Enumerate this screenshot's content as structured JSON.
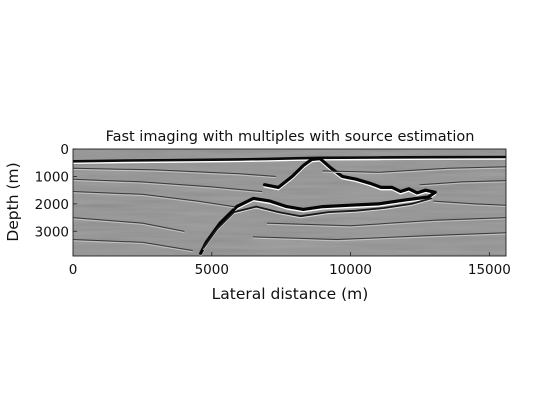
{
  "chart_data": {
    "type": "heatmap",
    "title": "Fast imaging with multiples with source estimation",
    "xlabel": "Lateral distance (m)",
    "ylabel": "Depth (m)",
    "xlim": [
      0,
      15600
    ],
    "ylim": [
      0,
      3900
    ],
    "y_reversed": true,
    "colormap": "gray",
    "xticks": [
      0,
      5000,
      10000,
      15000
    ],
    "yticks": [
      0,
      1000,
      2000,
      3000
    ],
    "xtick_labels": [
      "0",
      "5000",
      "10000",
      "15000"
    ],
    "ytick_labels": [
      "0",
      "1000",
      "2000",
      "3000"
    ],
    "grid": false,
    "reflectors": [
      {
        "kind": "water-bottom",
        "points": [
          [
            0,
            450
          ],
          [
            2000,
            420
          ],
          [
            4000,
            400
          ],
          [
            6000,
            380
          ],
          [
            7000,
            360
          ],
          [
            8000,
            340
          ],
          [
            9000,
            320
          ],
          [
            11000,
            310
          ],
          [
            13000,
            300
          ],
          [
            15600,
            290
          ]
        ]
      },
      {
        "kind": "salt-top",
        "points": [
          [
            6900,
            1300
          ],
          [
            7400,
            1400
          ],
          [
            7900,
            1000
          ],
          [
            8300,
            600
          ],
          [
            8600,
            380
          ],
          [
            8900,
            350
          ],
          [
            9300,
            700
          ],
          [
            9700,
            1000
          ],
          [
            10200,
            1100
          ],
          [
            10700,
            1250
          ],
          [
            11100,
            1400
          ],
          [
            11500,
            1400
          ],
          [
            11800,
            1550
          ],
          [
            12100,
            1450
          ],
          [
            12400,
            1600
          ],
          [
            12700,
            1500
          ],
          [
            13050,
            1580
          ],
          [
            12800,
            1750
          ],
          [
            12000,
            1850
          ],
          [
            11000,
            2000
          ],
          [
            10000,
            2050
          ],
          [
            9000,
            2100
          ],
          [
            8300,
            2200
          ],
          [
            7700,
            2100
          ],
          [
            7100,
            1900
          ],
          [
            6500,
            1800
          ],
          [
            5900,
            2100
          ],
          [
            5300,
            2700
          ],
          [
            4800,
            3400
          ],
          [
            4600,
            3800
          ]
        ]
      },
      {
        "kind": "salt-base",
        "points": [
          [
            4700,
            3600
          ],
          [
            5200,
            2900
          ],
          [
            5800,
            2300
          ],
          [
            6600,
            2100
          ],
          [
            7400,
            2300
          ],
          [
            8200,
            2450
          ],
          [
            9200,
            2300
          ],
          [
            10200,
            2250
          ],
          [
            11200,
            2150
          ],
          [
            12200,
            2000
          ],
          [
            12900,
            1800
          ]
        ]
      },
      {
        "kind": "sediment",
        "points": [
          [
            0,
            700
          ],
          [
            3000,
            760
          ],
          [
            6000,
            900
          ],
          [
            7300,
            1000
          ]
        ]
      },
      {
        "kind": "sediment",
        "points": [
          [
            0,
            1100
          ],
          [
            2500,
            1200
          ],
          [
            5000,
            1380
          ],
          [
            6800,
            1550
          ]
        ]
      },
      {
        "kind": "sediment",
        "points": [
          [
            0,
            1550
          ],
          [
            2500,
            1650
          ],
          [
            4500,
            1900
          ],
          [
            5800,
            2100
          ]
        ]
      },
      {
        "kind": "sediment",
        "points": [
          [
            9000,
            800
          ],
          [
            11000,
            850
          ],
          [
            13500,
            700
          ],
          [
            15600,
            650
          ]
        ]
      },
      {
        "kind": "sediment",
        "points": [
          [
            12500,
            1300
          ],
          [
            14000,
            1200
          ],
          [
            15600,
            1150
          ]
        ]
      },
      {
        "kind": "sediment",
        "points": [
          [
            13000,
            1900
          ],
          [
            14500,
            2000
          ],
          [
            15600,
            2050
          ]
        ]
      },
      {
        "kind": "sediment",
        "points": [
          [
            7000,
            2700
          ],
          [
            10000,
            2800
          ],
          [
            13000,
            2600
          ],
          [
            15600,
            2500
          ]
        ]
      },
      {
        "kind": "sediment",
        "points": [
          [
            6500,
            3200
          ],
          [
            9500,
            3300
          ],
          [
            13000,
            3150
          ],
          [
            15600,
            3050
          ]
        ]
      },
      {
        "kind": "sediment",
        "points": [
          [
            0,
            2500
          ],
          [
            2500,
            2700
          ],
          [
            4000,
            3000
          ]
        ]
      },
      {
        "kind": "sediment",
        "points": [
          [
            0,
            3300
          ],
          [
            2500,
            3400
          ],
          [
            4300,
            3700
          ]
        ]
      }
    ]
  }
}
